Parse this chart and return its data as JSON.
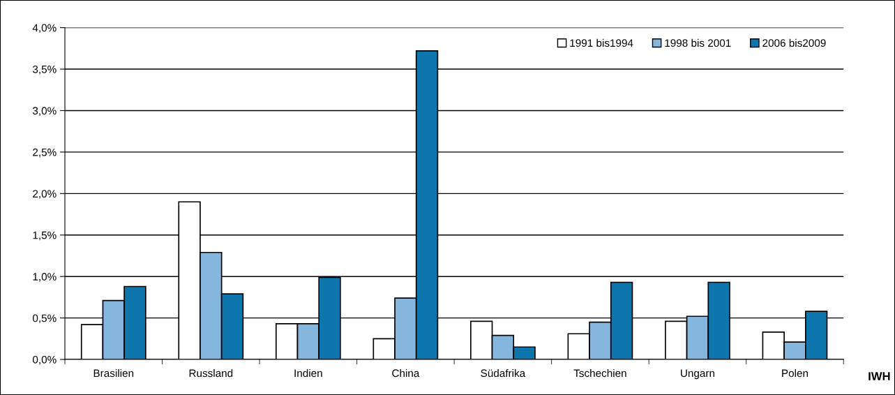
{
  "chart_data": {
    "type": "bar",
    "categories": [
      "Brasilien",
      "Russland",
      "Indien",
      "China",
      "Südafrika",
      "Tschechien",
      "Ungarn",
      "Polen"
    ],
    "series": [
      {
        "name": "1991 bis1994",
        "color": "#ffffff",
        "values": [
          0.42,
          1.9,
          0.43,
          0.25,
          0.46,
          0.31,
          0.46,
          0.33
        ]
      },
      {
        "name": "1998 bis 2001",
        "color": "#85b6de",
        "values": [
          0.71,
          1.29,
          0.43,
          0.74,
          0.29,
          0.45,
          0.52,
          0.21
        ]
      },
      {
        "name": "2006 bis2009",
        "color": "#0f76ad",
        "values": [
          0.88,
          0.79,
          0.99,
          3.72,
          0.15,
          0.93,
          0.93,
          0.58
        ]
      }
    ],
    "ylim": [
      0,
      4.0
    ],
    "yticks": [
      {
        "value": 0,
        "label": "0,0%"
      },
      {
        "value": 0.5,
        "label": "0,5%"
      },
      {
        "value": 1.0,
        "label": "1,0%"
      },
      {
        "value": 1.5,
        "label": "1,5%"
      },
      {
        "value": 2.0,
        "label": "2,0%"
      },
      {
        "value": 2.5,
        "label": "2,5%"
      },
      {
        "value": 3.0,
        "label": "3,0%"
      },
      {
        "value": 3.5,
        "label": "3,5%"
      },
      {
        "value": 4.0,
        "label": "4,0%"
      }
    ],
    "grid": "y",
    "legend": "top right",
    "annotations": [
      "IWH"
    ]
  }
}
